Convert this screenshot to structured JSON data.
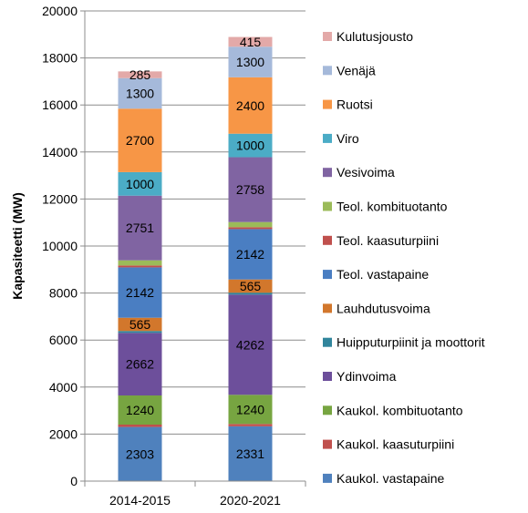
{
  "chart_data": {
    "type": "bar",
    "stacked": true,
    "categories": [
      "2014-2015",
      "2020-2021"
    ],
    "ylabel": "Kapasiteetti (MW)",
    "ylim": [
      0,
      20000
    ],
    "yticks": [
      0,
      2000,
      4000,
      6000,
      8000,
      10000,
      12000,
      14000,
      16000,
      18000,
      20000
    ],
    "grid": true,
    "legend_position": "right",
    "series": [
      {
        "name": "Kaukol. vastapaine",
        "values": [
          2303,
          2331
        ],
        "color": "#4F81BD",
        "show_label": true
      },
      {
        "name": "Kaukol. kaasuturpiini",
        "values": [
          100,
          100
        ],
        "color": "#C0504D",
        "show_label": false
      },
      {
        "name": "Kaukol. kombituotanto",
        "values": [
          1240,
          1240
        ],
        "color": "#77A541",
        "show_label": true
      },
      {
        "name": "Ydinvoima",
        "values": [
          2662,
          4262
        ],
        "color": "#6D4F9B",
        "show_label": true
      },
      {
        "name": "Huipputurpiinit ja moottorit",
        "values": [
          80,
          80
        ],
        "color": "#31859C",
        "show_label": false
      },
      {
        "name": "Lauhdutusvoima",
        "values": [
          565,
          565
        ],
        "color": "#D2772C",
        "show_label": true
      },
      {
        "name": "Teol. vastapaine",
        "values": [
          2142,
          2142
        ],
        "color": "#4A7EC2",
        "show_label": true
      },
      {
        "name": "Teol. kaasuturpiini",
        "values": [
          80,
          80
        ],
        "color": "#C0504D",
        "show_label": false
      },
      {
        "name": "Teol. kombituotanto",
        "values": [
          220,
          220
        ],
        "color": "#9BBB59",
        "show_label": false
      },
      {
        "name": "Vesivoima",
        "values": [
          2751,
          2758
        ],
        "color": "#8064A2",
        "show_label": true
      },
      {
        "name": "Viro",
        "values": [
          1000,
          1000
        ],
        "color": "#4BACC6",
        "show_label": true
      },
      {
        "name": "Ruotsi",
        "values": [
          2700,
          2400
        ],
        "color": "#F79646",
        "show_label": true
      },
      {
        "name": "Venäjä",
        "values": [
          1300,
          1300
        ],
        "color": "#A5B9DA",
        "show_label": true
      },
      {
        "name": "Kulutusjousto",
        "values": [
          285,
          415
        ],
        "color": "#E3A9A8",
        "show_label": true
      }
    ]
  }
}
